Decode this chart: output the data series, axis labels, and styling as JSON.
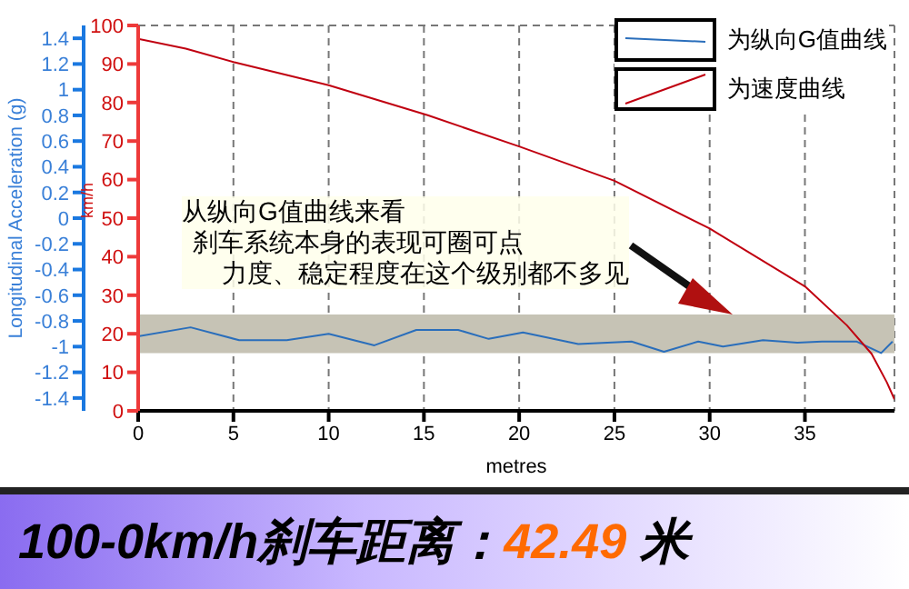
{
  "chart_data": {
    "type": "line",
    "title": "100-0km/h刹车距离：42.49 米",
    "xlabel": "metres",
    "ylabel": "km/h",
    "y2label": "Longitudinal Acceleration (g)",
    "xlim": [
      0,
      39.7
    ],
    "xticks": [
      0,
      5,
      10,
      15,
      20,
      25,
      30,
      35
    ],
    "ylim": [
      0,
      100
    ],
    "yticks": [
      0,
      10,
      20,
      30,
      40,
      50,
      60,
      70,
      80,
      90,
      100
    ],
    "y2lim": [
      -1.5,
      1.5
    ],
    "y2ticks": [
      -1.4,
      -1.2,
      -1,
      -0.8,
      -0.6,
      -0.4,
      -0.2,
      0,
      0.2,
      0.4,
      0.6,
      0.8,
      1,
      1.2,
      1.4
    ],
    "series": [
      {
        "name": "为纵向G值曲线",
        "color": "#2a6ebb",
        "axis": "y2",
        "x": [
          0,
          2.75,
          5.3,
          7.8,
          10,
          12.4,
          14.6,
          16.8,
          18.4,
          20.2,
          23.1,
          25.9,
          27.6,
          29.4,
          30.7,
          32.8,
          34.6,
          35.9,
          37.7,
          39,
          39.6
        ],
        "values": [
          -0.92,
          -0.85,
          -0.95,
          -0.95,
          -0.9,
          -0.99,
          -0.87,
          -0.87,
          -0.94,
          -0.89,
          -0.98,
          -0.96,
          -1.04,
          -0.96,
          -1,
          -0.95,
          -0.97,
          -0.96,
          -0.96,
          -1.05,
          -0.96
        ]
      },
      {
        "name": "为速度曲线",
        "color": "#c00010",
        "x": [
          0,
          2.5,
          5,
          10,
          15.2,
          20,
          25,
          30,
          35,
          37.2,
          38.5,
          39.3,
          39.7
        ],
        "values": [
          96.5,
          94,
          90.5,
          84.5,
          76.7,
          68.6,
          59.7,
          47.3,
          32.3,
          22.2,
          14.8,
          7.4,
          3
        ]
      }
    ],
    "bands": [
      {
        "axis": "y2",
        "from": -1.05,
        "to": -0.75,
        "color": "#c6c3b5"
      }
    ],
    "annotations": [
      "从纵向G值曲线来看",
      "刹车系统本身的表现可圈可点",
      "力度、稳定程度在这个级别都不多见"
    ],
    "grid": true,
    "legend": "top right",
    "marker": "none",
    "line_style": "solid"
  }
}
